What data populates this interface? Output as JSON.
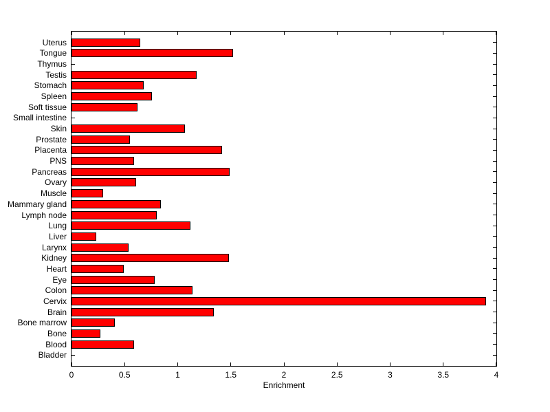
{
  "figure": {
    "background_color": "#FFFFFF"
  },
  "chart_data": {
    "type": "bar",
    "orientation": "horizontal",
    "title": "",
    "xlabel": "Enrichment",
    "ylabel": "",
    "xlim": [
      0,
      4
    ],
    "x_ticks": [
      0,
      0.5,
      1,
      1.5,
      2,
      2.5,
      3,
      3.5,
      4
    ],
    "x_tick_labels": [
      "0",
      "0.5",
      "1",
      "1.5",
      "2",
      "2.5",
      "3",
      "3.5",
      "4"
    ],
    "grid": false,
    "legend": "none",
    "bar_color": "#FF0000",
    "bar_edge_color": "#000000",
    "axis_color": "#000000",
    "categories": [
      "Uterus",
      "Tongue",
      "Thymus",
      "Testis",
      "Stomach",
      "Spleen",
      "Soft tissue",
      "Small intestine",
      "Skin",
      "Prostate",
      "Placenta",
      "PNS",
      "Pancreas",
      "Ovary",
      "Muscle",
      "Mammary gland",
      "Lymph node",
      "Lung",
      "Liver",
      "Larynx",
      "Kidney",
      "Heart",
      "Eye",
      "Colon",
      "Cervix",
      "Brain",
      "Bone marrow",
      "Bone",
      "Blood",
      "Bladder"
    ],
    "values": [
      0.65,
      1.52,
      0,
      1.18,
      0.68,
      0.76,
      0.62,
      0,
      1.07,
      0.55,
      1.42,
      0.59,
      1.49,
      0.61,
      0.3,
      0.84,
      0.8,
      1.12,
      0.23,
      0.54,
      1.48,
      0.49,
      0.78,
      1.14,
      3.9,
      1.34,
      0.41,
      0.27,
      0.59,
      0
    ]
  }
}
